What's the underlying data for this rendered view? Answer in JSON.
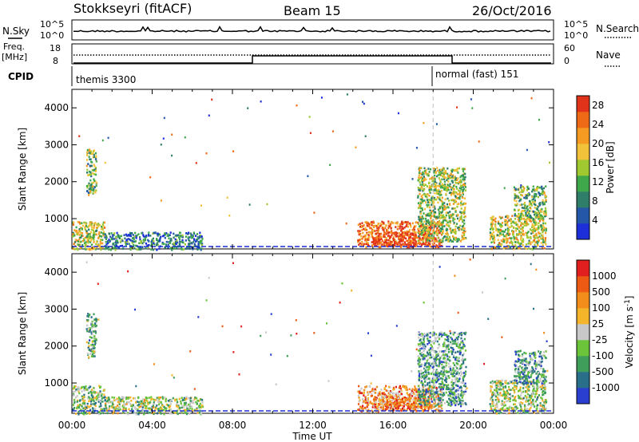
{
  "header": {
    "station": "Stokkseyri (fitACF)",
    "beam": "Beam 15",
    "date": "26/Oct/2016"
  },
  "top_panels": {
    "nsky_label": "N.Sky",
    "nsearch_label": "N.Search",
    "nsky_ticks": [
      "10^5",
      "10^0"
    ],
    "nsearch_ticks": [
      "10^5",
      "10^0"
    ],
    "freq_label": "Freq.",
    "freq_unit": "[MHz]",
    "freq_ticks": [
      "18",
      "8"
    ],
    "nave_label": "Nave",
    "nave_ticks": [
      "60",
      "0"
    ],
    "cpid_label": "CPID",
    "cpid_modes": [
      {
        "name": "themis 3300",
        "start_hour": 0
      },
      {
        "name": "normal (fast) 151",
        "start_hour": 18
      }
    ]
  },
  "chart_data": [
    {
      "type": "heatmap",
      "name": "power",
      "ylabel": "Slant Range [km]",
      "ylim": [
        180,
        4500
      ],
      "xlim": [
        0,
        24
      ],
      "yticks": [
        "1000",
        "2000",
        "3000",
        "4000"
      ],
      "colorbar_label": "Power [dB]",
      "colorbar_ticks": [
        "4",
        "8",
        "12",
        "16",
        "20",
        "24",
        "28"
      ],
      "colorbar_range": [
        0,
        30
      ],
      "colors": [
        "#1c2fd9",
        "#2457a8",
        "#2f7e6a",
        "#3fa84a",
        "#a0c830",
        "#f2c23a",
        "#f59a22",
        "#ef6a16",
        "#e1321a"
      ],
      "clusters": [
        {
          "t0": 0.0,
          "t1": 1.6,
          "r0": 180,
          "r1": 950,
          "level": 0.55
        },
        {
          "t0": 0.7,
          "t1": 1.2,
          "r0": 1700,
          "r1": 2900,
          "level": 0.45
        },
        {
          "t0": 1.6,
          "t1": 6.5,
          "r0": 180,
          "r1": 650,
          "level": 0.25
        },
        {
          "t0": 14.2,
          "t1": 18.4,
          "r0": 250,
          "r1": 950,
          "level": 0.85
        },
        {
          "t0": 15.0,
          "t1": 17.8,
          "r0": 300,
          "r1": 650,
          "level": 0.98
        },
        {
          "t0": 17.2,
          "t1": 19.6,
          "r0": 400,
          "r1": 2400,
          "level": 0.5
        },
        {
          "t0": 20.8,
          "t1": 23.6,
          "r0": 200,
          "r1": 1100,
          "level": 0.55
        },
        {
          "t0": 22.0,
          "t1": 23.6,
          "r0": 1000,
          "r1": 1900,
          "level": 0.45
        }
      ]
    },
    {
      "type": "heatmap",
      "name": "velocity",
      "ylabel": "Slant Range [km]",
      "ylim": [
        180,
        4500
      ],
      "xlim": [
        0,
        24
      ],
      "yticks": [
        "1000",
        "2000",
        "3000",
        "4000"
      ],
      "colorbar_label": "Velocity [m s",
      "colorbar_label_sup": "-1",
      "colorbar_label_end": "]",
      "colorbar_ticks": [
        "1000",
        "500",
        "100",
        "25",
        "-25",
        "-100",
        "-500",
        "-1000"
      ],
      "colors": [
        "#2a3fd0",
        "#2a6f8a",
        "#3e9e5a",
        "#6cc43a",
        "#c8c8c8",
        "#f5b52a",
        "#f28c1a",
        "#ec5a14",
        "#e11f1f"
      ],
      "clusters": [
        {
          "t0": 0.0,
          "t1": 1.6,
          "r0": 180,
          "r1": 950,
          "level": 0.4
        },
        {
          "t0": 0.7,
          "t1": 1.2,
          "r0": 1700,
          "r1": 2900,
          "level": 0.35
        },
        {
          "t0": 1.6,
          "t1": 6.5,
          "r0": 180,
          "r1": 650,
          "level": 0.45
        },
        {
          "t0": 14.2,
          "t1": 18.4,
          "r0": 250,
          "r1": 950,
          "level": 0.7
        },
        {
          "t0": 15.0,
          "t1": 17.8,
          "r0": 300,
          "r1": 650,
          "level": 0.75
        },
        {
          "t0": 17.2,
          "t1": 19.6,
          "r0": 400,
          "r1": 2400,
          "level": 0.3
        },
        {
          "t0": 20.8,
          "t1": 23.6,
          "r0": 200,
          "r1": 1100,
          "level": 0.45
        },
        {
          "t0": 22.0,
          "t1": 23.6,
          "r0": 1000,
          "r1": 1900,
          "level": 0.3
        }
      ]
    }
  ],
  "xaxis": {
    "ticks": [
      "00:00",
      "04:00",
      "08:00",
      "12:00",
      "16:00",
      "20:00",
      "00:00"
    ],
    "label": "Time UT"
  }
}
